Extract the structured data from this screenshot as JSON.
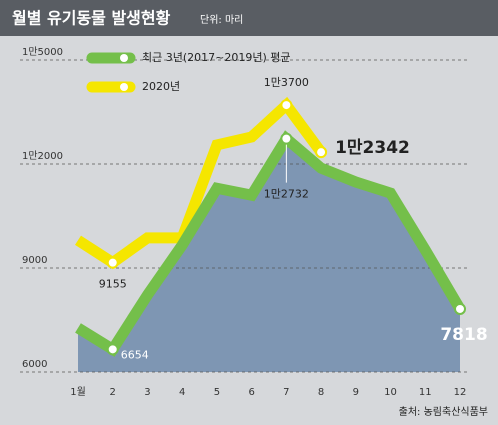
{
  "chart_data": {
    "type": "line",
    "title": "월별 유기동물 발생현황",
    "subtitle": "단위: 마리",
    "source": "출처: 농림축산식품부",
    "categories": [
      "1월",
      "2",
      "3",
      "4",
      "5",
      "6",
      "7",
      "8",
      "9",
      "10",
      "11",
      "12"
    ],
    "series": [
      {
        "name": "최근 3년(2017~2019년) 평균",
        "color": "#74bf4a",
        "values": [
          7270,
          6654,
          8220,
          9660,
          11300,
          11100,
          12732,
          11880,
          11480,
          11160,
          9520,
          7818
        ],
        "value_labels": [
          null,
          "6654",
          null,
          null,
          null,
          null,
          "1만2732",
          null,
          null,
          null,
          null,
          "7818"
        ]
      },
      {
        "name": "2020년",
        "color": "#f5e600",
        "values": [
          9800,
          9155,
          9870,
          9870,
          12550,
          12780,
          13700,
          12342,
          null,
          null,
          null,
          null
        ],
        "value_labels": [
          null,
          "9155",
          null,
          null,
          null,
          null,
          "1만3700",
          "1만2342",
          null,
          null,
          null,
          null
        ]
      }
    ],
    "ylim": [
      6000,
      15000
    ],
    "yticks": [
      6000,
      9000,
      {
        "value": 12000,
        "label": "1만2000"
      },
      {
        "value": 15000,
        "label": "1만5000"
      }
    ],
    "grid": true
  }
}
